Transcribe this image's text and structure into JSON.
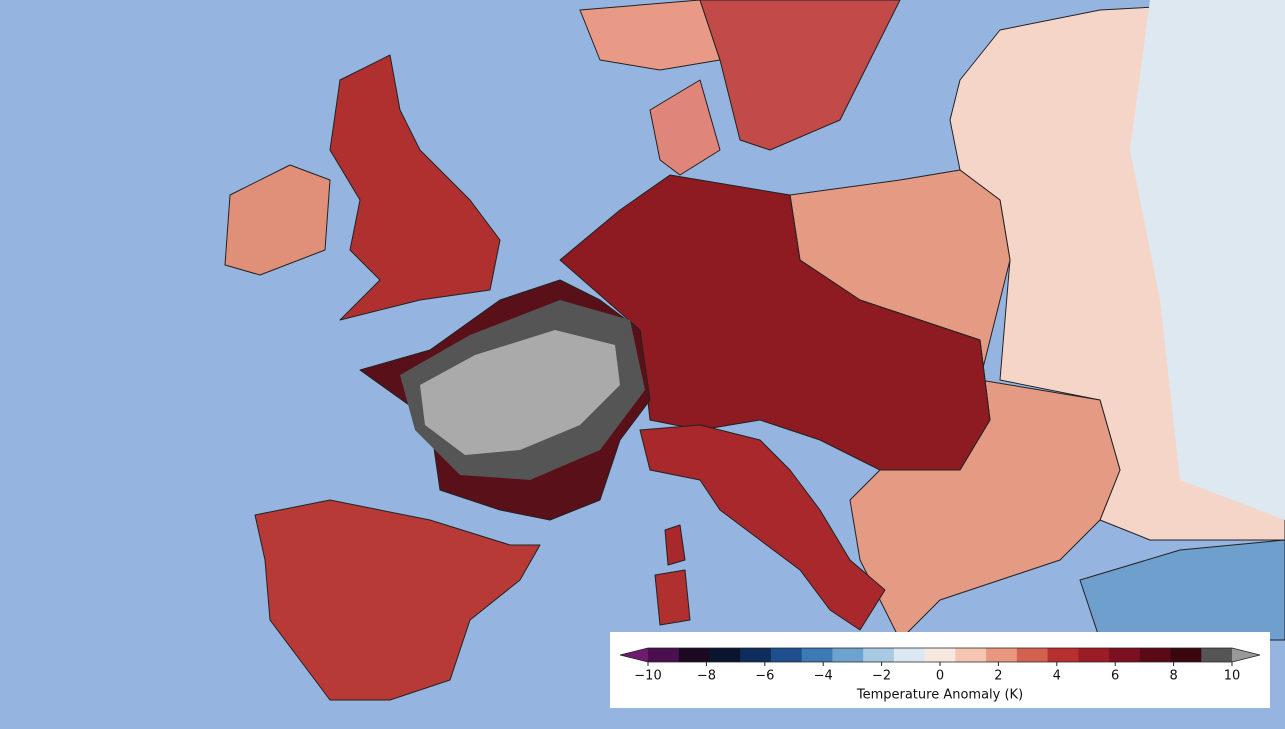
{
  "colorbar": {
    "label": "Temperature Anomaly (K)",
    "lim": [
      -10,
      10
    ],
    "ticks": [
      {
        "value": -10,
        "label": "−10"
      },
      {
        "value": -8,
        "label": "−8"
      },
      {
        "value": -6,
        "label": "−6"
      },
      {
        "value": -4,
        "label": "−4"
      },
      {
        "value": -2,
        "label": "−2"
      },
      0,
      2,
      4,
      6,
      8,
      10
    ],
    "colors": [
      "#6e1a6e",
      "#4a0f4f",
      "#1c0a22",
      "#0c1530",
      "#0f2d5c",
      "#1e4f8c",
      "#3d7ab4",
      "#6fa3cf",
      "#a7c9e2",
      "#dbe8f1",
      "#f6e7df",
      "#f4c6b2",
      "#e9977f",
      "#d2614f",
      "#b72f2f",
      "#9c1c26",
      "#7c1020",
      "#5a0a17",
      "#3a0710",
      "#555555",
      "#999999"
    ]
  }
}
